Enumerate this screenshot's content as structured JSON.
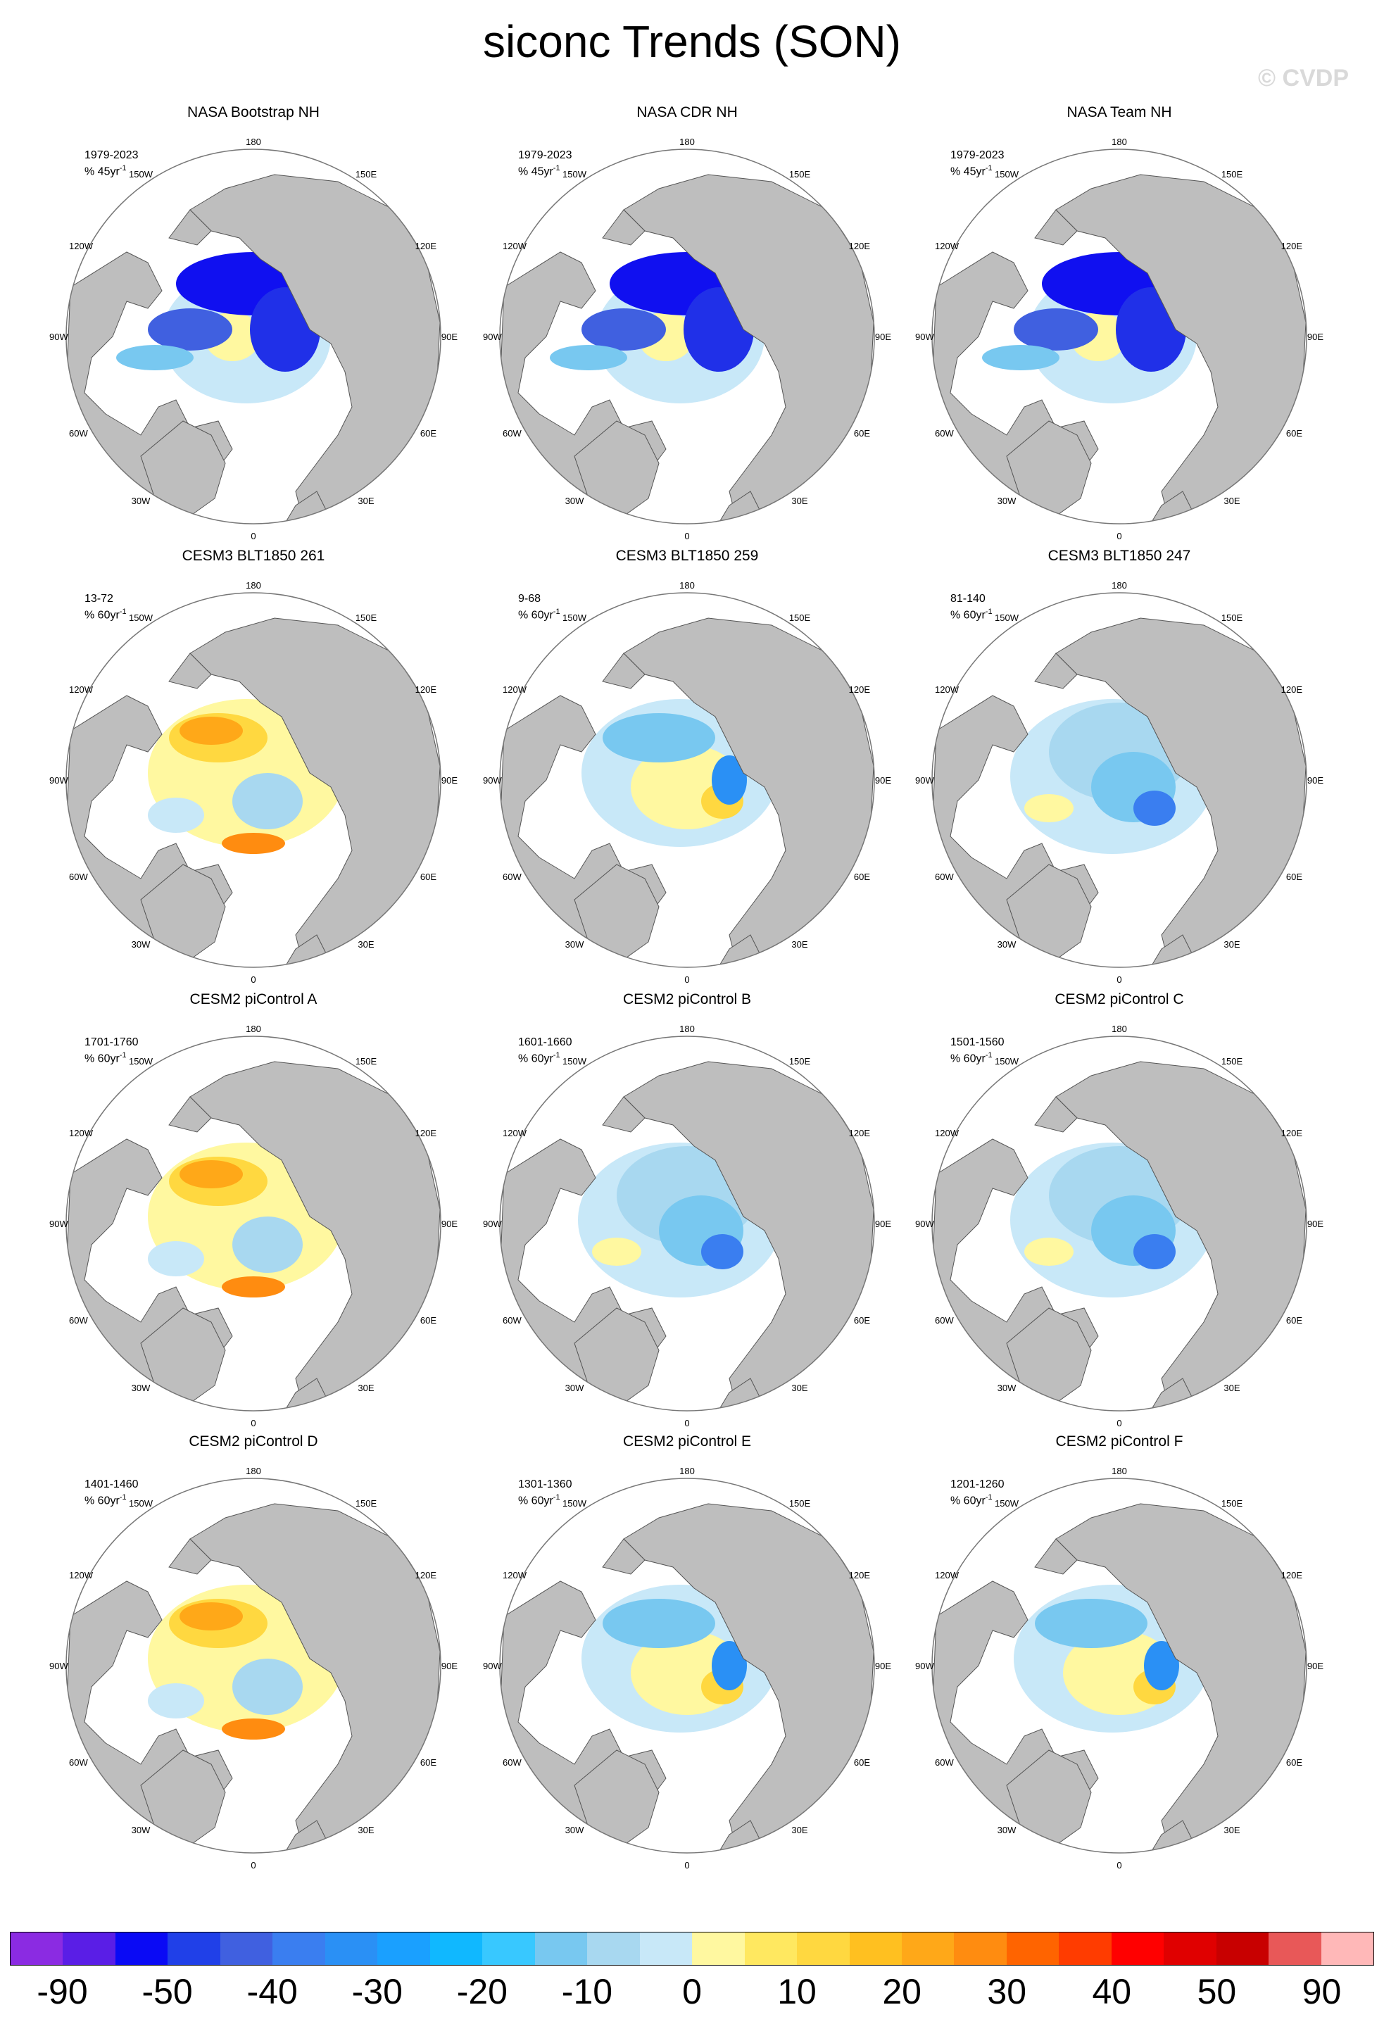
{
  "figure": {
    "title": "siconc Trends (SON)",
    "watermark": "© CVDP"
  },
  "map_labels": {
    "top": "180",
    "bottom": "0",
    "left": "90W",
    "right": "90E",
    "upper_left_a": "150W",
    "upper_left_b": "120W",
    "lower_left_a": "60W",
    "lower_left_b": "30W",
    "upper_right_a": "150E",
    "upper_right_b": "120E",
    "lower_right_a": "60E",
    "lower_right_b": "30E"
  },
  "panels": [
    {
      "title": "NASA Bootstrap NH",
      "period": "1979-2023",
      "unit": "% 45yr",
      "unit_sup": "-1",
      "pattern": "obs"
    },
    {
      "title": "NASA CDR NH",
      "period": "1979-2023",
      "unit": "% 45yr",
      "unit_sup": "-1",
      "pattern": "obs"
    },
    {
      "title": "NASA Team NH",
      "period": "1979-2023",
      "unit": "% 45yr",
      "unit_sup": "-1",
      "pattern": "obs"
    },
    {
      "title": "CESM3 BLT1850 261",
      "period": "13-72",
      "unit": "% 60yr",
      "unit_sup": "-1",
      "pattern": "warm"
    },
    {
      "title": "CESM3 BLT1850 259",
      "period": "9-68",
      "unit": "% 60yr",
      "unit_sup": "-1",
      "pattern": "mixed"
    },
    {
      "title": "CESM3 BLT1850 247",
      "period": "81-140",
      "unit": "% 60yr",
      "unit_sup": "-1",
      "pattern": "cool"
    },
    {
      "title": "CESM2 piControl A",
      "period": "1701-1760",
      "unit": "% 60yr",
      "unit_sup": "-1",
      "pattern": "warm"
    },
    {
      "title": "CESM2 piControl B",
      "period": "1601-1660",
      "unit": "% 60yr",
      "unit_sup": "-1",
      "pattern": "cool"
    },
    {
      "title": "CESM2 piControl C",
      "period": "1501-1560",
      "unit": "% 60yr",
      "unit_sup": "-1",
      "pattern": "cool"
    },
    {
      "title": "CESM2 piControl D",
      "period": "1401-1460",
      "unit": "% 60yr",
      "unit_sup": "-1",
      "pattern": "warm"
    },
    {
      "title": "CESM2 piControl E",
      "period": "1301-1360",
      "unit": "% 60yr",
      "unit_sup": "-1",
      "pattern": "mixed"
    },
    {
      "title": "CESM2 piControl F",
      "period": "1201-1260",
      "unit": "% 60yr",
      "unit_sup": "-1",
      "pattern": "mixed"
    }
  ],
  "colorbar": {
    "colors": [
      "#8b2be2",
      "#5a1ee6",
      "#0a0af5",
      "#2040e8",
      "#4060e0",
      "#3a7ef0",
      "#2a90f5",
      "#1aa0ff",
      "#10b8ff",
      "#38c8ff",
      "#78c8f0",
      "#a8d8f0",
      "#c8e8f8",
      "#fff8a0",
      "#ffe860",
      "#ffd840",
      "#ffc020",
      "#ffa818",
      "#ff8c10",
      "#ff6400",
      "#ff3c00",
      "#ff0000",
      "#e00000",
      "#c80000",
      "#e85858",
      "#ffb8b8"
    ],
    "labels": [
      "-90",
      "-50",
      "-40",
      "-30",
      "-20",
      "-10",
      "0",
      "10",
      "20",
      "30",
      "40",
      "50",
      "90"
    ]
  }
}
